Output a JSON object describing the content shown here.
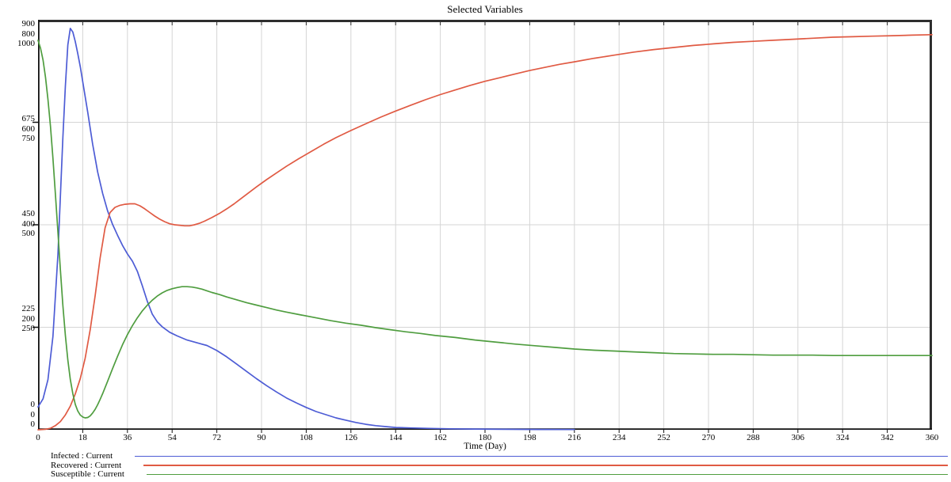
{
  "window": {
    "title": "Selected Variables"
  },
  "chart_data": {
    "type": "line",
    "title": "Selected Variables",
    "xlabel": "Time (Day)",
    "x_range": [
      0,
      360
    ],
    "x_tick_step": 18,
    "x_ticks": [
      "0",
      "18",
      "36",
      "54",
      "72",
      "90",
      "108",
      "126",
      "144",
      "162",
      "180",
      "198",
      "216",
      "234",
      "252",
      "270",
      "288",
      "306",
      "324",
      "342",
      "360"
    ],
    "y_axis_label_groups": [
      [
        "900",
        "800",
        "1000"
      ],
      [
        "675",
        "600",
        "750"
      ],
      [
        "450",
        "400",
        "500"
      ],
      [
        "225",
        "200",
        "250"
      ],
      [
        "0",
        "0",
        "0"
      ]
    ],
    "grid": true,
    "legend_position": "bottom-left",
    "colors": {
      "grid": "#d5d5d5",
      "axis": "#111111",
      "frame": "#2e2e2e",
      "background": "#ffffff"
    },
    "series": [
      {
        "name": "Infected : Current",
        "slug": "infected",
        "color": "#4d5cd5",
        "y_max": 900,
        "points": [
          [
            0,
            50
          ],
          [
            2,
            68
          ],
          [
            4,
            110
          ],
          [
            6,
            205
          ],
          [
            8,
            385
          ],
          [
            10,
            640
          ],
          [
            11,
            755
          ],
          [
            12,
            845
          ],
          [
            13,
            881
          ],
          [
            14,
            873
          ],
          [
            15,
            852
          ],
          [
            16,
            826
          ],
          [
            17,
            797
          ],
          [
            18,
            764
          ],
          [
            20,
            697
          ],
          [
            22,
            627
          ],
          [
            24,
            566
          ],
          [
            26,
            519
          ],
          [
            28,
            481
          ],
          [
            30,
            451
          ],
          [
            32,
            427
          ],
          [
            34,
            405
          ],
          [
            36,
            386
          ],
          [
            38,
            370
          ],
          [
            40,
            348
          ],
          [
            42,
            316
          ],
          [
            44,
            282
          ],
          [
            46,
            254
          ],
          [
            48,
            237
          ],
          [
            50,
            226
          ],
          [
            53,
            214
          ],
          [
            56,
            206
          ],
          [
            60,
            197
          ],
          [
            64,
            191
          ],
          [
            68,
            185
          ],
          [
            72,
            174
          ],
          [
            76,
            160
          ],
          [
            80,
            144
          ],
          [
            84,
            128
          ],
          [
            88,
            112
          ],
          [
            92,
            97
          ],
          [
            96,
            83
          ],
          [
            100,
            70
          ],
          [
            104,
            59
          ],
          [
            108,
            49
          ],
          [
            112,
            40
          ],
          [
            116,
            33
          ],
          [
            120,
            26
          ],
          [
            124,
            21
          ],
          [
            128,
            16
          ],
          [
            132,
            12
          ],
          [
            136,
            9
          ],
          [
            140,
            7
          ],
          [
            144,
            5
          ],
          [
            150,
            4
          ],
          [
            158,
            3
          ],
          [
            166,
            2
          ],
          [
            176,
            1.5
          ],
          [
            188,
            1
          ],
          [
            202,
            0.7
          ],
          [
            216,
            0.5
          ]
        ]
      },
      {
        "name": "Recovered : Current",
        "slug": "recovered",
        "color": "#e05a43",
        "y_max": 800,
        "points": [
          [
            0,
            0
          ],
          [
            3,
            1
          ],
          [
            5,
            3
          ],
          [
            7,
            8
          ],
          [
            9,
            16
          ],
          [
            11,
            29
          ],
          [
            13,
            46
          ],
          [
            15,
            70
          ],
          [
            17,
            100
          ],
          [
            19,
            140
          ],
          [
            21,
            195
          ],
          [
            23,
            262
          ],
          [
            25,
            335
          ],
          [
            27,
            394
          ],
          [
            29,
            424
          ],
          [
            31,
            434
          ],
          [
            33,
            438
          ],
          [
            35,
            440
          ],
          [
            37,
            441
          ],
          [
            39,
            441
          ],
          [
            41,
            437
          ],
          [
            43,
            431
          ],
          [
            45,
            424
          ],
          [
            47,
            417
          ],
          [
            49,
            411
          ],
          [
            51,
            406
          ],
          [
            53,
            402
          ],
          [
            55,
            400
          ],
          [
            57,
            399
          ],
          [
            59,
            398
          ],
          [
            61,
            398
          ],
          [
            63,
            400
          ],
          [
            65,
            403
          ],
          [
            67,
            407
          ],
          [
            70,
            414
          ],
          [
            73,
            422
          ],
          [
            76,
            431
          ],
          [
            79,
            441
          ],
          [
            82,
            452
          ],
          [
            85,
            463
          ],
          [
            88,
            474
          ],
          [
            92,
            488
          ],
          [
            96,
            501
          ],
          [
            100,
            514
          ],
          [
            105,
            529
          ],
          [
            110,
            543
          ],
          [
            115,
            557
          ],
          [
            120,
            570
          ],
          [
            126,
            584
          ],
          [
            132,
            597
          ],
          [
            138,
            610
          ],
          [
            144,
            622
          ],
          [
            150,
            633
          ],
          [
            156,
            644
          ],
          [
            162,
            654
          ],
          [
            168,
            663
          ],
          [
            174,
            672
          ],
          [
            180,
            680
          ],
          [
            186,
            687
          ],
          [
            192,
            694
          ],
          [
            198,
            701
          ],
          [
            204,
            707
          ],
          [
            210,
            713
          ],
          [
            216,
            718
          ],
          [
            224,
            725
          ],
          [
            232,
            731
          ],
          [
            240,
            737
          ],
          [
            248,
            742
          ],
          [
            256,
            746
          ],
          [
            264,
            750
          ],
          [
            272,
            753
          ],
          [
            280,
            756
          ],
          [
            288,
            758
          ],
          [
            296,
            760
          ],
          [
            304,
            762
          ],
          [
            312,
            764
          ],
          [
            320,
            766
          ],
          [
            328,
            767
          ],
          [
            336,
            768
          ],
          [
            344,
            769
          ],
          [
            352,
            770
          ],
          [
            360,
            771
          ]
        ]
      },
      {
        "name": "Susceptible : Current",
        "slug": "susceptible",
        "color": "#4f9d3f",
        "y_max": 1000,
        "points": [
          [
            0,
            950
          ],
          [
            1,
            931
          ],
          [
            2,
            902
          ],
          [
            3,
            860
          ],
          [
            4,
            806
          ],
          [
            5,
            740
          ],
          [
            6,
            662
          ],
          [
            7,
            575
          ],
          [
            8,
            482
          ],
          [
            9,
            390
          ],
          [
            10,
            304
          ],
          [
            11,
            230
          ],
          [
            12,
            170
          ],
          [
            13,
            123
          ],
          [
            14,
            88
          ],
          [
            15,
            62
          ],
          [
            16,
            46
          ],
          [
            17,
            36
          ],
          [
            18,
            31
          ],
          [
            19,
            29
          ],
          [
            20,
            30
          ],
          [
            21,
            34
          ],
          [
            22,
            41
          ],
          [
            23,
            50
          ],
          [
            24,
            61
          ],
          [
            25,
            74
          ],
          [
            26,
            88
          ],
          [
            28,
            118
          ],
          [
            30,
            149
          ],
          [
            32,
            179
          ],
          [
            34,
            207
          ],
          [
            36,
            232
          ],
          [
            38,
            254
          ],
          [
            40,
            273
          ],
          [
            42,
            290
          ],
          [
            44,
            304
          ],
          [
            46,
            316
          ],
          [
            48,
            326
          ],
          [
            50,
            334
          ],
          [
            52,
            340
          ],
          [
            54,
            344
          ],
          [
            56,
            347
          ],
          [
            58,
            349
          ],
          [
            60,
            349
          ],
          [
            62,
            348
          ],
          [
            64,
            346
          ],
          [
            66,
            343
          ],
          [
            68,
            339
          ],
          [
            70,
            335
          ],
          [
            73,
            330
          ],
          [
            76,
            324
          ],
          [
            80,
            317
          ],
          [
            84,
            310
          ],
          [
            88,
            304
          ],
          [
            92,
            298
          ],
          [
            96,
            292
          ],
          [
            100,
            287
          ],
          [
            106,
            280
          ],
          [
            112,
            273
          ],
          [
            118,
            266
          ],
          [
            124,
            260
          ],
          [
            130,
            255
          ],
          [
            136,
            249
          ],
          [
            142,
            244
          ],
          [
            148,
            239
          ],
          [
            154,
            235
          ],
          [
            160,
            230
          ],
          [
            168,
            225
          ],
          [
            176,
            219
          ],
          [
            184,
            214
          ],
          [
            192,
            209
          ],
          [
            200,
            205
          ],
          [
            208,
            201
          ],
          [
            216,
            197
          ],
          [
            224,
            194
          ],
          [
            232,
            192
          ],
          [
            240,
            190
          ],
          [
            248,
            188
          ],
          [
            256,
            186
          ],
          [
            264,
            185
          ],
          [
            272,
            184
          ],
          [
            280,
            184
          ],
          [
            288,
            183
          ],
          [
            296,
            182
          ],
          [
            304,
            182
          ],
          [
            312,
            182
          ],
          [
            320,
            181
          ],
          [
            328,
            181
          ],
          [
            336,
            181
          ],
          [
            344,
            181
          ],
          [
            352,
            181
          ],
          [
            360,
            181
          ]
        ]
      }
    ]
  }
}
